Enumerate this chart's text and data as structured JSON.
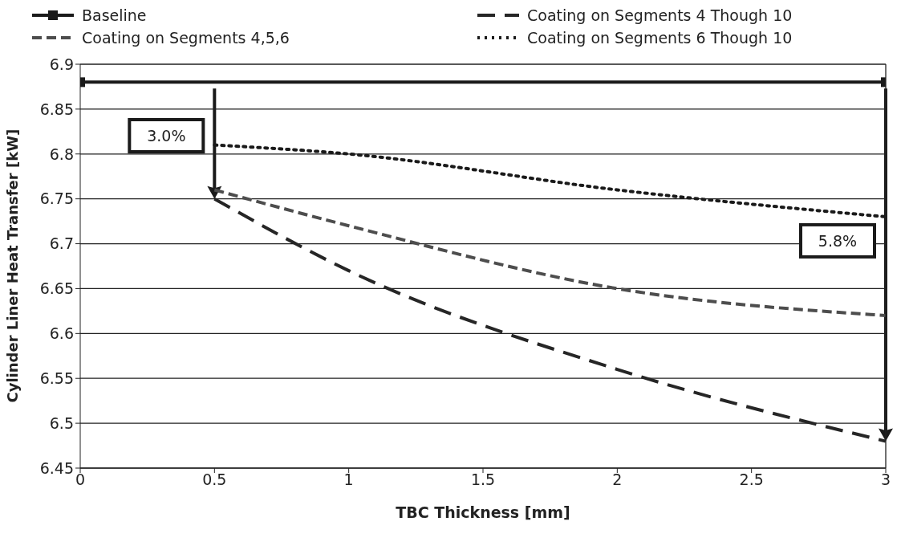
{
  "chart_data": {
    "type": "line",
    "xlabel": "TBC Thickness [mm]",
    "ylabel": "Cylinder Liner Heat Transfer [kW]",
    "series": [
      {
        "name": "Baseline",
        "color": "#1a1a1a",
        "x": [
          0,
          3
        ],
        "values": [
          6.88,
          6.88
        ],
        "marker": "square",
        "line_style": "solid"
      },
      {
        "name": "Coating on Segments 4 Though 10",
        "color": "#262626",
        "x": [
          0.5,
          1,
          2,
          3
        ],
        "values": [
          6.75,
          6.67,
          6.56,
          6.48
        ],
        "marker": "none",
        "line_style": "dashed"
      },
      {
        "name": "Coating on Segments 4,5,6",
        "color": "#4d4d4d",
        "x": [
          0.5,
          1,
          2,
          3
        ],
        "values": [
          6.76,
          6.72,
          6.65,
          6.62
        ],
        "marker": "none",
        "line_style": "dashed"
      },
      {
        "name": "Coating on Segments 6 Though 10",
        "color": "#1a1a1a",
        "x": [
          0.5,
          1,
          2,
          3
        ],
        "values": [
          6.81,
          6.8,
          6.76,
          6.73
        ],
        "marker": "none",
        "line_style": "dotted"
      }
    ],
    "annotations": [
      "3.0%",
      "5.8%"
    ],
    "xlim": [
      0,
      3
    ],
    "xticks": [
      0,
      0.5,
      1,
      1.5,
      2,
      2.5,
      3
    ],
    "ylim": [
      6.45,
      6.9
    ],
    "yticks": [
      6.45,
      6.5,
      6.55,
      6.6,
      6.65,
      6.7,
      6.75,
      6.8,
      6.85,
      6.9
    ],
    "grid": "y",
    "legend": "top"
  }
}
